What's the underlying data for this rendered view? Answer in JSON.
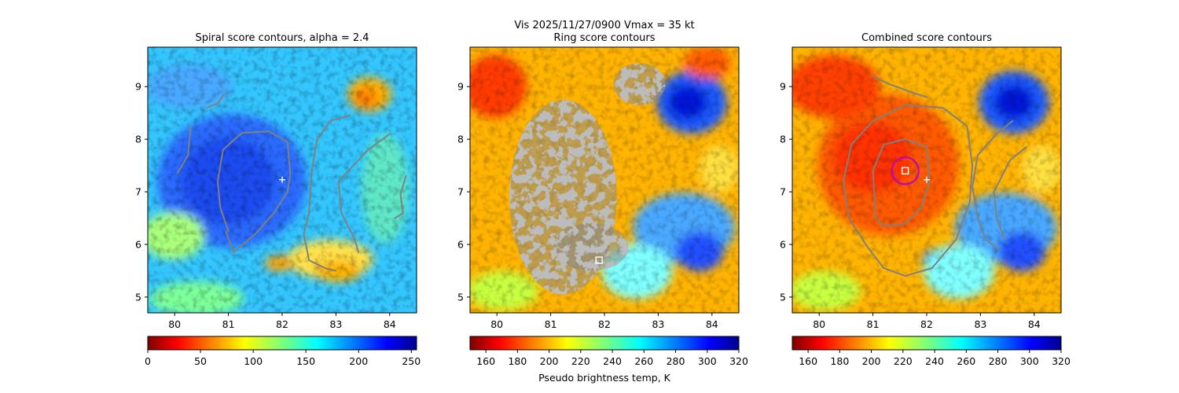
{
  "figure_title": "Vis  2025/11/27/0900    Vmax = 35 kt",
  "colorbar_label": "Pseudo brightness temp, K",
  "chart_data": [
    {
      "type": "heatmap",
      "title": "Spiral score contours, alpha =  2.4",
      "xlim": [
        79.5,
        84.5
      ],
      "ylim": [
        4.7,
        9.75
      ],
      "x_ticks": [
        "80",
        "81",
        "82",
        "83",
        "84"
      ],
      "y_ticks": [
        "5",
        "6",
        "7",
        "8",
        "9"
      ],
      "colormap": "jet_r",
      "colorbar_range": [
        0,
        255
      ],
      "colorbar_ticks": [
        "0",
        "50",
        "100",
        "150",
        "200",
        "250"
      ],
      "colorbar_label": "",
      "markers": [
        {
          "kind": "plus",
          "x": 82.0,
          "y": 7.23,
          "color": "#ffffff"
        }
      ],
      "contours": [
        [
          [
            80.3,
            8.25
          ],
          [
            80.25,
            7.7
          ],
          [
            80.05,
            7.35
          ]
        ],
        [
          [
            80.6,
            8.6
          ],
          [
            80.8,
            8.68
          ],
          [
            80.92,
            8.85
          ]
        ],
        [
          [
            81.0,
            6.25
          ],
          [
            80.85,
            6.7
          ],
          [
            80.8,
            7.2
          ],
          [
            80.9,
            7.8
          ],
          [
            81.25,
            8.12
          ],
          [
            81.75,
            8.15
          ],
          [
            82.1,
            7.95
          ],
          [
            82.15,
            7.35
          ],
          [
            82.1,
            7.0
          ],
          [
            81.85,
            6.6
          ],
          [
            81.5,
            6.2
          ],
          [
            81.1,
            5.85
          ],
          [
            80.95,
            6.25
          ]
        ],
        [
          [
            83.25,
            8.45
          ],
          [
            82.9,
            8.35
          ],
          [
            82.65,
            8.0
          ],
          [
            82.55,
            7.4
          ],
          [
            82.5,
            6.6
          ],
          [
            82.4,
            6.2
          ],
          [
            82.5,
            5.7
          ],
          [
            82.8,
            5.55
          ],
          [
            83.0,
            5.5
          ]
        ],
        [
          [
            84.0,
            8.1
          ],
          [
            83.6,
            7.8
          ],
          [
            83.05,
            7.2
          ],
          [
            83.1,
            6.6
          ],
          [
            83.35,
            6.1
          ],
          [
            83.42,
            5.85
          ]
        ],
        [
          [
            84.3,
            7.3
          ],
          [
            84.2,
            6.95
          ],
          [
            84.25,
            6.6
          ],
          [
            84.1,
            6.5
          ]
        ]
      ],
      "rings": []
    },
    {
      "type": "heatmap",
      "title": "Ring score contours",
      "xlim": [
        79.5,
        84.5
      ],
      "ylim": [
        4.7,
        9.75
      ],
      "x_ticks": [
        "80",
        "81",
        "82",
        "83",
        "84"
      ],
      "y_ticks": [
        "5",
        "6",
        "7",
        "8",
        "9"
      ],
      "colormap": "jet_r",
      "colorbar_range": [
        150,
        320
      ],
      "colorbar_ticks": [
        "160",
        "180",
        "200",
        "220",
        "240",
        "260",
        "280",
        "300",
        "320"
      ],
      "colorbar_label": "Pseudo brightness temp, K",
      "markers": [
        {
          "kind": "square",
          "x": 81.9,
          "y": 5.7,
          "color": "#ffffff"
        }
      ],
      "contours": [],
      "dense_regions": [
        {
          "cx": 81.23,
          "cy": 6.9,
          "rx": 1.0,
          "ry": 1.85
        },
        {
          "cx": 81.75,
          "cy": 5.95,
          "rx": 0.7,
          "ry": 0.45
        },
        {
          "cx": 82.65,
          "cy": 9.05,
          "rx": 0.48,
          "ry": 0.4
        }
      ],
      "rings": []
    },
    {
      "type": "heatmap",
      "title": "Combined score contours",
      "xlim": [
        79.5,
        84.5
      ],
      "ylim": [
        4.7,
        9.75
      ],
      "x_ticks": [
        "80",
        "81",
        "82",
        "83",
        "84"
      ],
      "y_ticks": [
        "5",
        "6",
        "7",
        "8",
        "9"
      ],
      "colormap": "jet_r",
      "colorbar_range": [
        150,
        320
      ],
      "colorbar_ticks": [
        "160",
        "180",
        "200",
        "220",
        "240",
        "260",
        "280",
        "300",
        "320"
      ],
      "colorbar_label": "",
      "markers": [
        {
          "kind": "square",
          "x": 81.6,
          "y": 7.4,
          "color": "#ffffff"
        },
        {
          "kind": "plus",
          "x": 82.0,
          "y": 7.23,
          "color": "#ffffff"
        }
      ],
      "contours": [
        [
          [
            80.9,
            5.95
          ],
          [
            80.55,
            6.5
          ],
          [
            80.45,
            7.2
          ],
          [
            80.6,
            7.9
          ],
          [
            81.0,
            8.35
          ],
          [
            81.6,
            8.65
          ],
          [
            82.3,
            8.6
          ],
          [
            82.75,
            8.25
          ],
          [
            82.85,
            7.5
          ],
          [
            82.8,
            6.8
          ],
          [
            82.55,
            6.1
          ],
          [
            82.1,
            5.55
          ],
          [
            81.6,
            5.4
          ],
          [
            81.2,
            5.55
          ],
          [
            80.9,
            5.95
          ]
        ],
        [
          [
            81.05,
            6.5
          ],
          [
            81.0,
            7.4
          ],
          [
            81.2,
            7.9
          ],
          [
            81.6,
            8.0
          ],
          [
            82.0,
            7.85
          ],
          [
            82.05,
            7.2
          ],
          [
            81.9,
            6.7
          ],
          [
            81.6,
            6.4
          ],
          [
            81.2,
            6.35
          ],
          [
            81.05,
            6.5
          ]
        ],
        [
          [
            81.0,
            9.2
          ],
          [
            81.3,
            9.05
          ],
          [
            81.7,
            8.9
          ],
          [
            82.0,
            8.8
          ]
        ],
        [
          [
            83.6,
            8.35
          ],
          [
            83.3,
            8.1
          ],
          [
            82.95,
            7.7
          ],
          [
            82.85,
            7.1
          ],
          [
            82.95,
            6.5
          ],
          [
            83.1,
            6.1
          ],
          [
            83.35,
            5.9
          ]
        ],
        [
          [
            83.85,
            7.85
          ],
          [
            83.55,
            7.6
          ],
          [
            83.25,
            7.0
          ],
          [
            83.3,
            6.5
          ],
          [
            83.45,
            6.1
          ]
        ]
      ],
      "rings": [
        {
          "x": 81.6,
          "y": 7.4,
          "r": 0.25,
          "color": "#bb00cc"
        }
      ]
    }
  ]
}
